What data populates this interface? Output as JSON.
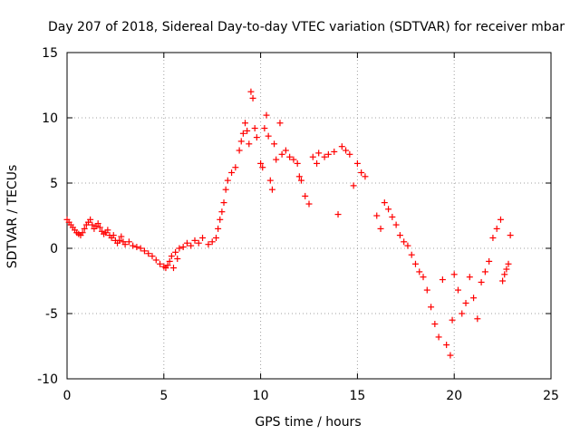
{
  "chart_data": {
    "type": "scatter",
    "title": "Day 207 of 2018, Sidereal Day-to-day VTEC variation (SDTVAR) for receiver mbar",
    "xlabel": "GPS time / hours",
    "ylabel": "SDTVAR / TECUs",
    "xlim": [
      0,
      25
    ],
    "ylim": [
      -10,
      15
    ],
    "xticks": [
      "0",
      "5",
      "10",
      "15",
      "20",
      "25"
    ],
    "yticks": [
      "-10",
      "-5",
      "0",
      "5",
      "10",
      "15"
    ],
    "grid": true,
    "marker": "+",
    "color": "#ff0000",
    "series": [
      {
        "name": "SDTVAR",
        "points": [
          [
            0.0,
            2.2
          ],
          [
            0.1,
            2.0
          ],
          [
            0.2,
            1.8
          ],
          [
            0.3,
            1.6
          ],
          [
            0.4,
            1.4
          ],
          [
            0.5,
            1.2
          ],
          [
            0.6,
            1.1
          ],
          [
            0.7,
            1.0
          ],
          [
            0.8,
            1.2
          ],
          [
            0.9,
            1.5
          ],
          [
            1.0,
            1.8
          ],
          [
            1.1,
            2.0
          ],
          [
            1.2,
            2.2
          ],
          [
            1.3,
            1.8
          ],
          [
            1.4,
            1.5
          ],
          [
            1.5,
            1.7
          ],
          [
            1.6,
            1.9
          ],
          [
            1.7,
            1.6
          ],
          [
            1.8,
            1.3
          ],
          [
            1.9,
            1.1
          ],
          [
            2.0,
            1.2
          ],
          [
            2.1,
            1.4
          ],
          [
            2.2,
            1.0
          ],
          [
            2.3,
            0.8
          ],
          [
            2.4,
            1.0
          ],
          [
            2.5,
            0.6
          ],
          [
            2.6,
            0.4
          ],
          [
            2.7,
            0.6
          ],
          [
            2.8,
            0.9
          ],
          [
            2.9,
            0.5
          ],
          [
            3.0,
            0.3
          ],
          [
            3.2,
            0.5
          ],
          [
            3.4,
            0.2
          ],
          [
            3.6,
            0.1
          ],
          [
            3.8,
            0.0
          ],
          [
            4.0,
            -0.2
          ],
          [
            4.2,
            -0.4
          ],
          [
            4.4,
            -0.6
          ],
          [
            4.6,
            -0.9
          ],
          [
            4.8,
            -1.2
          ],
          [
            5.0,
            -1.4
          ],
          [
            5.1,
            -1.5
          ],
          [
            5.2,
            -1.3
          ],
          [
            5.3,
            -1.0
          ],
          [
            5.4,
            -0.6
          ],
          [
            5.5,
            -1.5
          ],
          [
            5.6,
            -0.3
          ],
          [
            5.7,
            -0.8
          ],
          [
            5.8,
            0.0
          ],
          [
            6.0,
            0.1
          ],
          [
            6.2,
            0.4
          ],
          [
            6.4,
            0.2
          ],
          [
            6.6,
            0.6
          ],
          [
            6.8,
            0.4
          ],
          [
            7.0,
            0.8
          ],
          [
            7.3,
            0.3
          ],
          [
            7.5,
            0.5
          ],
          [
            7.7,
            0.8
          ],
          [
            7.8,
            1.5
          ],
          [
            7.9,
            2.2
          ],
          [
            8.0,
            2.8
          ],
          [
            8.1,
            3.5
          ],
          [
            8.2,
            4.5
          ],
          [
            8.3,
            5.2
          ],
          [
            8.5,
            5.8
          ],
          [
            8.7,
            6.2
          ],
          [
            8.9,
            7.5
          ],
          [
            9.0,
            8.2
          ],
          [
            9.1,
            8.8
          ],
          [
            9.2,
            9.6
          ],
          [
            9.3,
            9.0
          ],
          [
            9.4,
            8.0
          ],
          [
            9.5,
            12.0
          ],
          [
            9.6,
            11.5
          ],
          [
            9.7,
            9.2
          ],
          [
            9.8,
            8.5
          ],
          [
            10.0,
            6.5
          ],
          [
            10.1,
            6.2
          ],
          [
            10.2,
            9.2
          ],
          [
            10.3,
            10.2
          ],
          [
            10.4,
            8.6
          ],
          [
            10.5,
            5.2
          ],
          [
            10.6,
            4.5
          ],
          [
            10.7,
            8.0
          ],
          [
            10.8,
            6.8
          ],
          [
            11.0,
            9.6
          ],
          [
            11.1,
            7.2
          ],
          [
            11.3,
            7.5
          ],
          [
            11.5,
            7.0
          ],
          [
            11.7,
            6.8
          ],
          [
            11.9,
            6.5
          ],
          [
            12.0,
            5.5
          ],
          [
            12.1,
            5.2
          ],
          [
            12.3,
            4.0
          ],
          [
            12.5,
            3.4
          ],
          [
            12.7,
            7.0
          ],
          [
            12.9,
            6.5
          ],
          [
            13.0,
            7.3
          ],
          [
            13.3,
            7.0
          ],
          [
            13.5,
            7.2
          ],
          [
            13.8,
            7.4
          ],
          [
            14.0,
            2.6
          ],
          [
            14.2,
            7.8
          ],
          [
            14.4,
            7.5
          ],
          [
            14.6,
            7.2
          ],
          [
            14.8,
            4.8
          ],
          [
            15.0,
            6.5
          ],
          [
            15.2,
            5.8
          ],
          [
            15.4,
            5.5
          ],
          [
            16.0,
            2.5
          ],
          [
            16.2,
            1.5
          ],
          [
            16.4,
            3.5
          ],
          [
            16.6,
            3.0
          ],
          [
            16.8,
            2.4
          ],
          [
            17.0,
            1.8
          ],
          [
            17.2,
            1.0
          ],
          [
            17.4,
            0.5
          ],
          [
            17.6,
            0.2
          ],
          [
            17.8,
            -0.5
          ],
          [
            18.0,
            -1.2
          ],
          [
            18.2,
            -1.8
          ],
          [
            18.4,
            -2.2
          ],
          [
            18.6,
            -3.2
          ],
          [
            18.8,
            -4.5
          ],
          [
            19.0,
            -5.8
          ],
          [
            19.2,
            -6.8
          ],
          [
            19.4,
            -2.4
          ],
          [
            19.6,
            -7.4
          ],
          [
            19.8,
            -8.2
          ],
          [
            19.9,
            -5.5
          ],
          [
            20.0,
            -2.0
          ],
          [
            20.2,
            -3.2
          ],
          [
            20.4,
            -5.0
          ],
          [
            20.6,
            -4.2
          ],
          [
            20.8,
            -2.2
          ],
          [
            21.0,
            -3.8
          ],
          [
            21.2,
            -5.4
          ],
          [
            21.4,
            -2.6
          ],
          [
            21.6,
            -1.8
          ],
          [
            21.8,
            -1.0
          ],
          [
            22.0,
            0.8
          ],
          [
            22.2,
            1.5
          ],
          [
            22.4,
            2.2
          ],
          [
            22.5,
            -2.5
          ],
          [
            22.6,
            -2.0
          ],
          [
            22.7,
            -1.6
          ],
          [
            22.8,
            -1.2
          ],
          [
            22.9,
            1.0
          ]
        ]
      }
    ]
  }
}
